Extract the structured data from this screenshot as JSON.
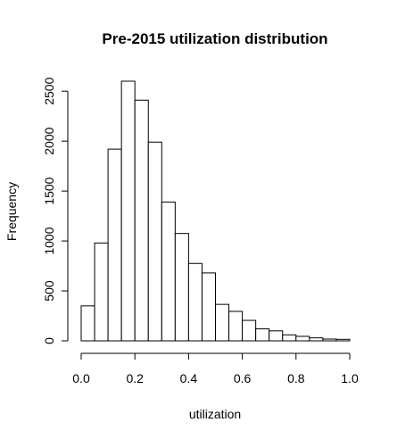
{
  "chart_data": {
    "type": "bar",
    "title": "Pre-2015 utilization distribution",
    "xlabel": "utilization",
    "ylabel": "Frequency",
    "bin_edges": [
      0.0,
      0.05,
      0.1,
      0.15,
      0.2,
      0.25,
      0.3,
      0.35,
      0.4,
      0.45,
      0.5,
      0.55,
      0.6,
      0.65,
      0.7,
      0.75,
      0.8,
      0.85,
      0.9,
      0.95,
      1.0
    ],
    "values": [
      350,
      980,
      1920,
      2600,
      2410,
      1990,
      1390,
      1075,
      775,
      680,
      365,
      295,
      205,
      120,
      100,
      60,
      45,
      30,
      18,
      15
    ],
    "xlim": [
      0,
      1
    ],
    "ylim": [
      0,
      2600
    ],
    "x_ticks": [
      0.0,
      0.2,
      0.4,
      0.6,
      0.8,
      1.0
    ],
    "x_tick_labels": [
      "0.0",
      "0.2",
      "0.4",
      "0.6",
      "0.8",
      "1.0"
    ],
    "y_ticks": [
      0,
      500,
      1000,
      1500,
      2000,
      2500
    ],
    "y_tick_labels": [
      "0",
      "500",
      "1000",
      "1500",
      "2000",
      "2500"
    ],
    "grid": false,
    "legend": "none",
    "colors": {
      "bar_fill": "#ffffff",
      "bar_stroke": "#000000"
    }
  }
}
